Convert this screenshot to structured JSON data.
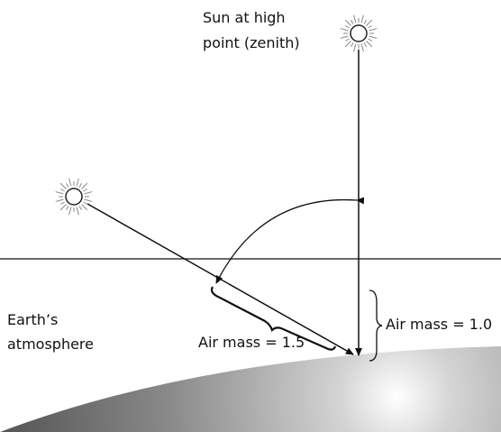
{
  "labels": {
    "zenith_sun": [
      "Sun at high",
      "point (zenith)"
    ],
    "atmosphere": [
      "Earth’s",
      "atmosphere"
    ],
    "air_mass_slant": "Air mass = 1.5",
    "air_mass_vertical": "Air mass = 1.0"
  }
}
